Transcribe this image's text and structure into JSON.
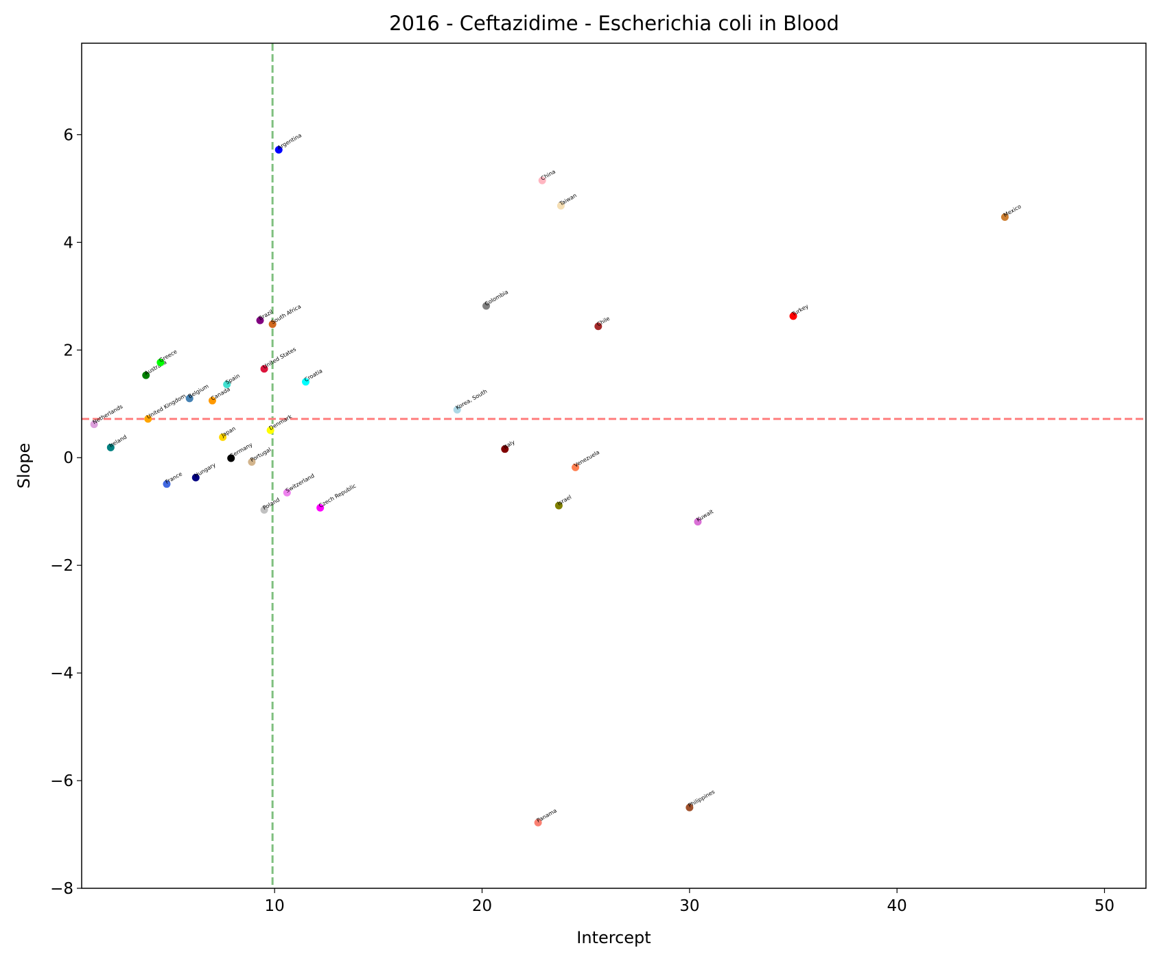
{
  "chart_data": {
    "type": "scatter",
    "title": "2016 - Ceftazidime - Escherichia coli in Blood",
    "xlabel": "Intercept",
    "ylabel": "Slope",
    "xlim": [
      0.7,
      52
    ],
    "ylim": [
      -8,
      7.7
    ],
    "xticks": [
      10,
      20,
      30,
      40,
      50
    ],
    "yticks": [
      -8,
      -6,
      -4,
      -2,
      0,
      2,
      4,
      6
    ],
    "reference_lines": [
      {
        "orientation": "vertical",
        "value": 9.9,
        "color": "#7fbf7f"
      },
      {
        "orientation": "horizontal",
        "value": 0.72,
        "color": "#ff7f7f"
      }
    ],
    "grid": false,
    "points": [
      {
        "name": "Netherlands",
        "x": 1.3,
        "y": 0.62,
        "color": "#dda0dd"
      },
      {
        "name": "Ireland",
        "x": 2.1,
        "y": 0.19,
        "color": "#008080"
      },
      {
        "name": "Australia",
        "x": 3.8,
        "y": 1.53,
        "color": "#008000"
      },
      {
        "name": "United Kingdom",
        "x": 3.9,
        "y": 0.72,
        "color": "#ffa500"
      },
      {
        "name": "Greece",
        "x": 4.5,
        "y": 1.77,
        "color": "#00ff00"
      },
      {
        "name": "France",
        "x": 4.8,
        "y": -0.49,
        "color": "#4169e1"
      },
      {
        "name": "Belgium",
        "x": 5.9,
        "y": 1.1,
        "color": "#4682b4"
      },
      {
        "name": "Hungary",
        "x": 6.2,
        "y": -0.37,
        "color": "#000080"
      },
      {
        "name": "Canada",
        "x": 7.0,
        "y": 1.06,
        "color": "#ff9900"
      },
      {
        "name": "Japan",
        "x": 7.5,
        "y": 0.38,
        "color": "#ffd700"
      },
      {
        "name": "Spain",
        "x": 7.7,
        "y": 1.36,
        "color": "#40e0d0"
      },
      {
        "name": "Germany",
        "x": 7.9,
        "y": -0.01,
        "color": "#000000"
      },
      {
        "name": "Portugal",
        "x": 8.9,
        "y": -0.08,
        "color": "#d2b48c"
      },
      {
        "name": "Brazil",
        "x": 9.3,
        "y": 2.55,
        "color": "#800080"
      },
      {
        "name": "United States",
        "x": 9.5,
        "y": 1.65,
        "color": "#dc143c"
      },
      {
        "name": "Poland",
        "x": 9.5,
        "y": -0.97,
        "color": "#c0c0c0"
      },
      {
        "name": "Denmark",
        "x": 9.8,
        "y": 0.51,
        "color": "#ffff00"
      },
      {
        "name": "South Africa",
        "x": 9.9,
        "y": 2.48,
        "color": "#d2691e"
      },
      {
        "name": "Argentina",
        "x": 10.2,
        "y": 5.72,
        "color": "#0000ff"
      },
      {
        "name": "Switzerland",
        "x": 10.6,
        "y": -0.65,
        "color": "#ee82ee"
      },
      {
        "name": "Croatia",
        "x": 11.5,
        "y": 1.41,
        "color": "#00ffff"
      },
      {
        "name": "Czech Republic",
        "x": 12.2,
        "y": -0.93,
        "color": "#ff00ff"
      },
      {
        "name": "Korea, South",
        "x": 18.8,
        "y": 0.89,
        "color": "#add8e6"
      },
      {
        "name": "Colombia",
        "x": 20.2,
        "y": 2.82,
        "color": "#808080"
      },
      {
        "name": "Italy",
        "x": 21.1,
        "y": 0.16,
        "color": "#800000"
      },
      {
        "name": "Panama",
        "x": 22.7,
        "y": -6.78,
        "color": "#fa8072"
      },
      {
        "name": "China",
        "x": 22.9,
        "y": 5.15,
        "color": "#ffb6c1"
      },
      {
        "name": "Israel",
        "x": 23.7,
        "y": -0.89,
        "color": "#808000"
      },
      {
        "name": "Taiwan",
        "x": 23.8,
        "y": 4.68,
        "color": "#f5deb3"
      },
      {
        "name": "Venezuela",
        "x": 24.5,
        "y": -0.18,
        "color": "#ff7f50"
      },
      {
        "name": "Chile",
        "x": 25.6,
        "y": 2.44,
        "color": "#a52a2a"
      },
      {
        "name": "Philippines",
        "x": 30.0,
        "y": -6.5,
        "color": "#a0522d"
      },
      {
        "name": "Kuwait",
        "x": 30.4,
        "y": -1.19,
        "color": "#da70d6"
      },
      {
        "name": "Turkey",
        "x": 35.0,
        "y": 2.63,
        "color": "#ff0000"
      },
      {
        "name": "Mexico",
        "x": 45.2,
        "y": 4.47,
        "color": "#cd7f32"
      }
    ]
  }
}
